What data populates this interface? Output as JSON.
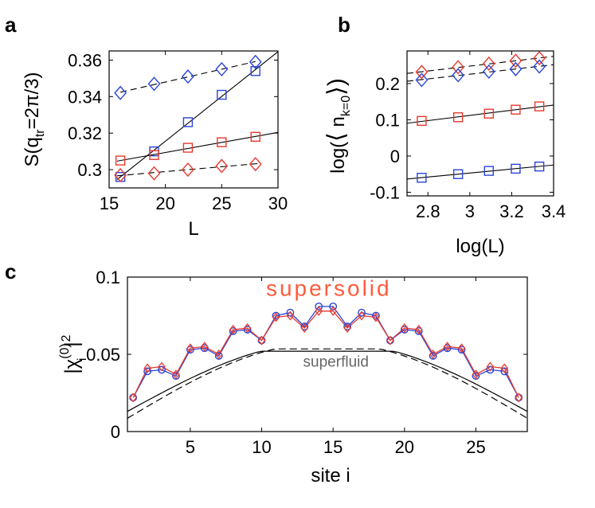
{
  "chart_data": [
    {
      "panel": "a",
      "type": "scatter",
      "ylabel": "S(q_tr=2π/3)",
      "ylabel_parts": {
        "main": "S(q",
        "sub": "tr",
        "rest": "=2π/3)"
      },
      "xlabel": "L",
      "xlim": [
        15,
        30
      ],
      "ylim": [
        0.29,
        0.365
      ],
      "xticks": [
        15,
        20,
        25,
        30
      ],
      "yticks": [
        0.3,
        0.32,
        0.34,
        0.36
      ],
      "ytick_labels": [
        "0.3",
        "0.32",
        "0.34",
        "0.36"
      ],
      "series": [
        {
          "name": "blue-diamond",
          "color": "#2a44d8",
          "marker": "diamond",
          "x": [
            16,
            19,
            22,
            25,
            28
          ],
          "y": [
            0.342,
            0.347,
            0.351,
            0.355,
            0.359
          ],
          "fit": "dashed",
          "fit_x": [
            16,
            28
          ]
        },
        {
          "name": "blue-square",
          "color": "#2a44d8",
          "marker": "square",
          "x": [
            16,
            19,
            22,
            25,
            28
          ],
          "y": [
            0.296,
            0.31,
            0.326,
            0.341,
            0.354
          ],
          "fit": "solid",
          "fit_x": [
            15.7,
            30
          ]
        },
        {
          "name": "red-square",
          "color": "#e8392c",
          "marker": "square",
          "x": [
            16,
            19,
            22,
            25,
            28
          ],
          "y": [
            0.305,
            0.308,
            0.312,
            0.315,
            0.318
          ],
          "fit": "solid",
          "fit_x": [
            15.7,
            30
          ]
        },
        {
          "name": "red-diamond",
          "color": "#e8392c",
          "marker": "diamond",
          "x": [
            16,
            19,
            22,
            25,
            28
          ],
          "y": [
            0.297,
            0.298,
            0.3,
            0.302,
            0.303
          ],
          "fit": "dashed",
          "fit_x": [
            15.7,
            28.5
          ]
        }
      ]
    },
    {
      "panel": "b",
      "type": "scatter",
      "ylabel": "log(⟨ n_k=0 ⟩)",
      "ylabel_parts": {
        "main": "log(",
        "open": "⟨",
        "n": " n",
        "sub": "k=0",
        "close": "⟩)"
      },
      "xlabel": "log(L)",
      "xlim": [
        2.7,
        3.4
      ],
      "ylim": [
        -0.11,
        0.29
      ],
      "xticks": [
        2.8,
        3,
        3.2,
        3.4
      ],
      "xtick_labels": [
        "2.8",
        "3",
        "3.2",
        "3.4"
      ],
      "yticks": [
        -0.1,
        0,
        0.1,
        0.2
      ],
      "ytick_labels": [
        "-0.1",
        "0",
        "0.1",
        "0.2"
      ],
      "series": [
        {
          "name": "red-diamond",
          "color": "#e8392c",
          "marker": "diamond",
          "x": [
            2.77,
            2.944,
            3.091,
            3.219,
            3.332
          ],
          "y": [
            0.232,
            0.245,
            0.255,
            0.263,
            0.27
          ],
          "fit": "dashed",
          "fit_x": [
            2.7,
            3.4
          ]
        },
        {
          "name": "blue-diamond",
          "color": "#2a44d8",
          "marker": "diamond",
          "x": [
            2.77,
            2.944,
            3.091,
            3.219,
            3.332
          ],
          "y": [
            0.21,
            0.223,
            0.233,
            0.24,
            0.247
          ],
          "fit": "dashed",
          "fit_x": [
            2.7,
            3.4
          ]
        },
        {
          "name": "red-square",
          "color": "#e8392c",
          "marker": "square",
          "x": [
            2.77,
            2.944,
            3.091,
            3.219,
            3.332
          ],
          "y": [
            0.097,
            0.107,
            0.117,
            0.128,
            0.137
          ],
          "fit": "solid",
          "fit_x": [
            2.7,
            3.4
          ]
        },
        {
          "name": "blue-square",
          "color": "#2a44d8",
          "marker": "square",
          "x": [
            2.77,
            2.944,
            3.091,
            3.219,
            3.332
          ],
          "y": [
            -0.06,
            -0.05,
            -0.041,
            -0.035,
            -0.029
          ],
          "fit": "solid",
          "fit_x": [
            2.7,
            3.4
          ]
        }
      ]
    },
    {
      "panel": "c",
      "type": "line",
      "ylabel": "|χ_i^(0)|^2",
      "ylabel_parts": {
        "bar1": "|",
        "chi": "χ",
        "sup": "(0)",
        "sub": "i",
        "bar2": "|",
        "pow": "2"
      },
      "xlabel": "site i",
      "xlim": [
        0.6,
        28.6
      ],
      "ylim": [
        0,
        0.1
      ],
      "xticks": [
        5,
        10,
        15,
        20,
        25
      ],
      "yticks": [
        0,
        0.05,
        0.1
      ],
      "ytick_labels": [
        "0",
        "0.05",
        "0.1"
      ],
      "annotations": [
        {
          "text": "supersolid",
          "color": "#ff5a3c",
          "x": 14.7,
          "y": 0.088
        },
        {
          "text": "superfluid",
          "color": "#666666",
          "x": 15.2,
          "y": 0.042
        }
      ],
      "series": [
        {
          "name": "supersolid-blue",
          "color": "#2a44d8",
          "marker": "circle",
          "x": [
            1,
            2,
            3,
            4,
            5,
            6,
            7,
            8,
            9,
            10,
            11,
            12,
            13,
            14,
            15,
            16,
            17,
            18,
            19,
            20,
            21,
            22,
            23,
            24,
            25,
            26,
            27,
            28
          ],
          "y": [
            0.022,
            0.039,
            0.04,
            0.036,
            0.053,
            0.054,
            0.049,
            0.065,
            0.066,
            0.059,
            0.075,
            0.077,
            0.068,
            0.081,
            0.081,
            0.068,
            0.077,
            0.075,
            0.059,
            0.066,
            0.065,
            0.049,
            0.054,
            0.053,
            0.036,
            0.04,
            0.039,
            0.022
          ]
        },
        {
          "name": "supersolid-red",
          "color": "#e8392c",
          "marker": "diamond",
          "x": [
            1,
            2,
            3,
            4,
            5,
            6,
            7,
            8,
            9,
            10,
            11,
            12,
            13,
            14,
            15,
            16,
            17,
            18,
            19,
            20,
            21,
            22,
            23,
            24,
            25,
            26,
            27,
            28
          ],
          "y": [
            0.022,
            0.041,
            0.042,
            0.037,
            0.054,
            0.055,
            0.05,
            0.066,
            0.067,
            0.059,
            0.074,
            0.075,
            0.067,
            0.078,
            0.078,
            0.067,
            0.075,
            0.074,
            0.059,
            0.067,
            0.066,
            0.05,
            0.055,
            0.054,
            0.037,
            0.042,
            0.041,
            0.022
          ]
        },
        {
          "name": "superfluid-solid",
          "style": "solid",
          "color": "#000000",
          "amplitude": 0.052,
          "offset": 0.007
        },
        {
          "name": "superfluid-dashed",
          "style": "dashed",
          "color": "#000000",
          "amplitude": 0.0535,
          "offset": 0.0045
        }
      ]
    }
  ]
}
